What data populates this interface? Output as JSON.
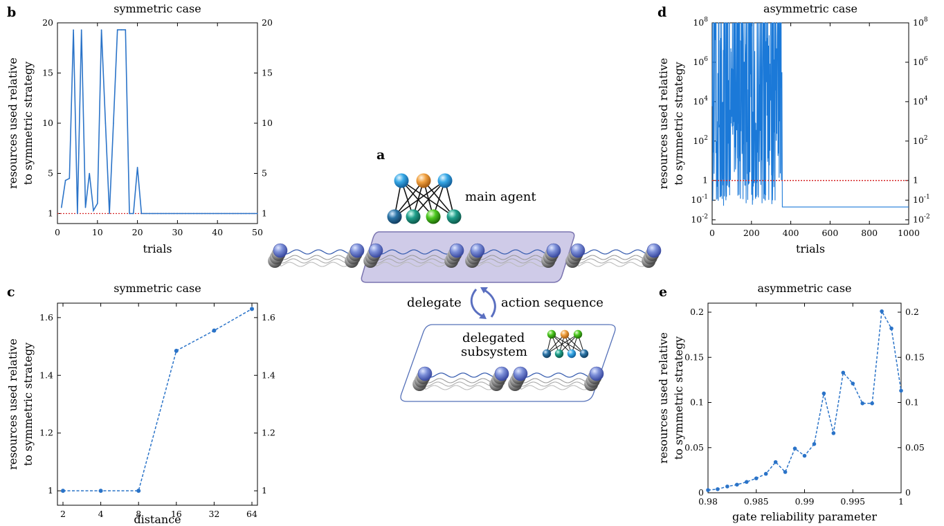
{
  "colors": {
    "series": "#2a73c8",
    "series_dense": "#1b79d8",
    "reference": "#d62728",
    "axis": "#000000",
    "panel_fill": "#cfcbe8",
    "panel_stroke": "#7a74b0",
    "wave": "#3a5fb0"
  },
  "panel_labels": {
    "a": "a",
    "b": "b",
    "c": "c",
    "d": "d",
    "e": "e"
  },
  "schematic": {
    "main_agent": "main agent",
    "delegate": "delegate",
    "action_sequence": "action sequence",
    "delegated_line1": "delegated",
    "delegated_line2": "subsystem"
  },
  "chart_data": [
    {
      "id": "b",
      "type": "line",
      "title": "symmetric case",
      "xlabel": "trials",
      "ylabel_line1": "resources used relative",
      "ylabel_line2": "to symmetric strategy",
      "xlim": [
        0,
        50
      ],
      "ylim": [
        0,
        20
      ],
      "xticks": [
        0,
        10,
        20,
        30,
        40,
        50
      ],
      "yticks": [
        1,
        5,
        10,
        15,
        20
      ],
      "reference_y": 1,
      "x": [
        1,
        2,
        3,
        4,
        5,
        6,
        7,
        8,
        9,
        10,
        11,
        12,
        13,
        14,
        15,
        16,
        17,
        18,
        19,
        20,
        21,
        22,
        23,
        24,
        25,
        26,
        27,
        28,
        29,
        30,
        31,
        32,
        33,
        34,
        35,
        36,
        37,
        38,
        39,
        40,
        41,
        42,
        43,
        44,
        45,
        46,
        47,
        48,
        49,
        50
      ],
      "values": [
        1.6,
        4.3,
        4.5,
        19.3,
        1.0,
        19.3,
        1.6,
        5.0,
        1.3,
        2.0,
        19.3,
        10.0,
        1.0,
        10.0,
        19.3,
        19.3,
        19.3,
        1.0,
        1.0,
        5.6,
        1.0,
        1.0,
        1.0,
        1.0,
        1.0,
        1.0,
        1.0,
        1.0,
        1.0,
        1.0,
        1.0,
        1.0,
        1.0,
        1.0,
        1.0,
        1.0,
        1.0,
        1.0,
        1.0,
        1.0,
        1.0,
        1.0,
        1.0,
        1.0,
        1.0,
        1.0,
        1.0,
        1.0,
        1.0,
        1.0
      ]
    },
    {
      "id": "c",
      "type": "line",
      "title": "symmetric case",
      "xlabel": "distance",
      "ylabel_line1": "resources used relative",
      "ylabel_line2": "to symmetric strategy",
      "x_scale": "log2",
      "categories": [
        "2",
        "4",
        "8",
        "16",
        "32",
        "64"
      ],
      "x": [
        2,
        4,
        8,
        16,
        32,
        64
      ],
      "values": [
        1.0,
        1.0,
        1.0,
        1.485,
        1.555,
        1.63
      ],
      "ylim": [
        0.95,
        1.65
      ],
      "yticks": [
        1,
        1.2,
        1.4,
        1.6
      ],
      "ytick_labels": [
        "1",
        "1.2",
        "1.4",
        "1.6"
      ],
      "markers": true,
      "dashed": true
    },
    {
      "id": "d",
      "type": "line",
      "title": "asymmetric case",
      "xlabel": "trials",
      "ylabel_line1": "resources used relative",
      "ylabel_line2": "to symmetric strategy",
      "y_scale": "log10",
      "xlim": [
        0,
        1000
      ],
      "ylim": [
        0.006,
        100000000
      ],
      "xticks": [
        0,
        200,
        400,
        600,
        800,
        1000
      ],
      "yticks": [
        0.01,
        0.1,
        1,
        100,
        10000,
        1000000,
        100000000
      ],
      "ytick_labels": [
        {
          "base": "10",
          "exp": "-2"
        },
        {
          "base": "10",
          "exp": "-1"
        },
        {
          "base": "1",
          "exp": ""
        },
        {
          "base": "10",
          "exp": "2"
        },
        {
          "base": "10",
          "exp": "4"
        },
        {
          "base": "10",
          "exp": "6"
        },
        {
          "base": "10",
          "exp": "8"
        }
      ],
      "reference_y": 1,
      "noisy_until": 355,
      "baseline_after": 0.045
    },
    {
      "id": "e",
      "type": "line",
      "title": "asymmetric case",
      "xlabel": "gate reliability parameter",
      "ylabel_line1": "resources used relative",
      "ylabel_line2": "to symmetric strategy",
      "xlim": [
        0.98,
        1.0
      ],
      "ylim": [
        0,
        0.21
      ],
      "xticks": [
        0.98,
        0.985,
        0.99,
        0.995,
        1
      ],
      "xtick_labels": [
        "0.98",
        "0.985",
        "0.99",
        "0.995",
        "1"
      ],
      "yticks": [
        0,
        0.05,
        0.1,
        0.15,
        0.2
      ],
      "ytick_labels": [
        "0",
        "0.05",
        "0.1",
        "0.15",
        "0.2"
      ],
      "x": [
        0.98,
        0.981,
        0.982,
        0.983,
        0.984,
        0.985,
        0.986,
        0.987,
        0.988,
        0.989,
        0.99,
        0.991,
        0.992,
        0.993,
        0.994,
        0.995,
        0.996,
        0.997,
        0.998,
        0.999,
        1.0
      ],
      "values": [
        0.003,
        0.004,
        0.007,
        0.009,
        0.012,
        0.016,
        0.021,
        0.034,
        0.023,
        0.049,
        0.041,
        0.054,
        0.11,
        0.066,
        0.133,
        0.121,
        0.099,
        0.099,
        0.201,
        0.182,
        0.113
      ],
      "markers": true,
      "dashed": true
    }
  ]
}
